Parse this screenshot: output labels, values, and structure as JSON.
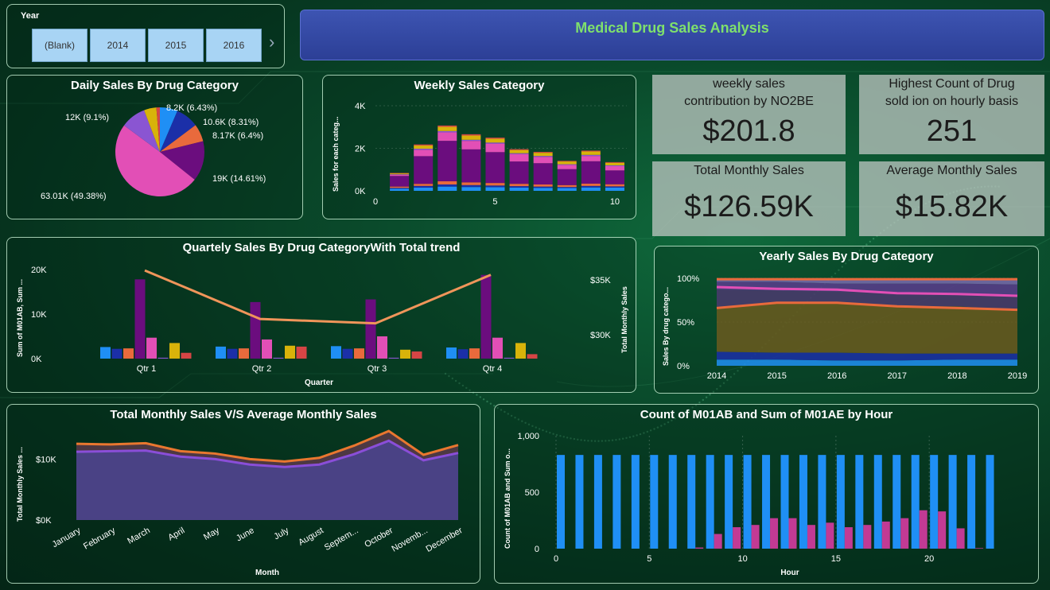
{
  "header": {
    "title": "Medical Drug Sales Analysis"
  },
  "slicer": {
    "label": "Year",
    "options": [
      "(Blank)",
      "2014",
      "2015",
      "2016"
    ],
    "more": "›"
  },
  "cards": [
    {
      "label1": "weekly sales",
      "label2": "contribution by NO2BE",
      "value": "$201.8"
    },
    {
      "label1": "Highest Count of Drug",
      "label2": "sold ion on hourly basis",
      "value": "251"
    },
    {
      "label1": "Total Monthly Sales",
      "label2": "",
      "value": "$126.59K"
    },
    {
      "label1": "Average Monthly Sales",
      "label2": "",
      "value": "$15.82K"
    }
  ],
  "colors": {
    "blue": "#1f8ff5",
    "navy": "#1b2fa8",
    "orange": "#e96a3c",
    "purple": "#6b0d7e",
    "pink": "#e24fb6",
    "lavender": "#8a55d2",
    "yellow": "#d8b30a",
    "red": "#d64545"
  },
  "chart_data": [
    {
      "id": "daily",
      "type": "pie",
      "title": "Daily Sales By Drug Category",
      "slices": [
        {
          "label": "8.2K (6.43%)",
          "value": 6.43,
          "color": "#1f8ff5"
        },
        {
          "label": "10.6K (8.31%)",
          "value": 8.31,
          "color": "#1b2fa8"
        },
        {
          "label": "8.17K (6.4%)",
          "value": 6.4,
          "color": "#e96a3c"
        },
        {
          "label": "19K (14.61%)",
          "value": 14.61,
          "color": "#6b0d7e"
        },
        {
          "label": "63.01K (49.38%)",
          "value": 49.38,
          "color": "#e24fb6"
        },
        {
          "label": "12K (9.1%)",
          "value": 9.1,
          "color": "#8a55d2"
        },
        {
          "label": "",
          "value": 4.5,
          "color": "#d8b30a"
        },
        {
          "label": "",
          "value": 1.27,
          "color": "#d64545"
        }
      ]
    },
    {
      "id": "weekly",
      "type": "bar",
      "stacked": true,
      "title": "Weekly Sales Category",
      "ylabel": "Sales for each categ...",
      "yticks": [
        "0K",
        "2K",
        "4K"
      ],
      "ylim": [
        0,
        4000
      ],
      "xticks": [
        0,
        5,
        10
      ],
      "x": [
        1,
        2,
        3,
        4,
        5,
        6,
        7,
        8,
        9,
        10
      ],
      "series": [
        {
          "values": [
            100,
            150,
            200,
            180,
            170,
            150,
            140,
            130,
            160,
            150
          ],
          "color": "#1f8ff5"
        },
        {
          "values": [
            40,
            80,
            100,
            90,
            80,
            70,
            60,
            50,
            70,
            60
          ],
          "color": "#1b2fa8"
        },
        {
          "values": [
            60,
            100,
            150,
            130,
            120,
            110,
            100,
            90,
            110,
            100
          ],
          "color": "#e96a3c"
        },
        {
          "values": [
            500,
            1300,
            1900,
            1550,
            1450,
            1050,
            1000,
            750,
            1050,
            650
          ],
          "color": "#6b0d7e"
        },
        {
          "values": [
            60,
            300,
            400,
            400,
            400,
            350,
            300,
            200,
            250,
            200
          ],
          "color": "#e24fb6"
        },
        {
          "values": [
            20,
            50,
            60,
            50,
            50,
            40,
            40,
            30,
            50,
            40
          ],
          "color": "#8a55d2"
        },
        {
          "values": [
            40,
            150,
            200,
            200,
            180,
            150,
            150,
            130,
            160,
            120
          ],
          "color": "#d8b30a"
        },
        {
          "values": [
            20,
            50,
            60,
            60,
            50,
            40,
            40,
            30,
            40,
            30
          ],
          "color": "#d64545"
        }
      ]
    },
    {
      "id": "quarterly",
      "type": "bar",
      "title": "Quartely Sales By Drug CategoryWith Total trend",
      "xlabel": "Quarter",
      "ylabel": "Sum of M01AB, Sum ...",
      "y2label": "Total Monthly Sales",
      "categories": [
        "Qtr 1",
        "Qtr 2",
        "Qtr 3",
        "Qtr 4"
      ],
      "yticks": [
        "0K",
        "10K",
        "20K"
      ],
      "ylim": [
        0,
        20000
      ],
      "y2ticks": [
        "$30K",
        "$35K"
      ],
      "y2lim": [
        26000,
        37000
      ],
      "series": [
        {
          "values": [
            2600,
            2700,
            2800,
            2500
          ],
          "color": "#1f8ff5"
        },
        {
          "values": [
            2200,
            2200,
            2200,
            2100
          ],
          "color": "#1b2fa8"
        },
        {
          "values": [
            2300,
            2300,
            2300,
            2300
          ],
          "color": "#e96a3c"
        },
        {
          "values": [
            17800,
            12700,
            13300,
            18800
          ],
          "color": "#6b0d7e"
        },
        {
          "values": [
            4700,
            4300,
            5000,
            4700
          ],
          "color": "#e24fb6"
        },
        {
          "values": [
            200,
            200,
            200,
            200
          ],
          "color": "#8a55d2"
        },
        {
          "values": [
            3500,
            2900,
            2000,
            3500
          ],
          "color": "#d8b30a"
        },
        {
          "values": [
            1300,
            2700,
            1600,
            1000
          ],
          "color": "#d64545"
        }
      ],
      "line": {
        "values": [
          36000,
          30500,
          30000,
          35500
        ],
        "color": "#f0955a"
      }
    },
    {
      "id": "yearly",
      "type": "area",
      "stacked": true,
      "title": "Yearly Sales By Drug Category",
      "ylabel": "Sales By drug catego...",
      "x": [
        2014,
        2015,
        2016,
        2017,
        2018,
        2019
      ],
      "yticks": [
        "0%",
        "50%",
        "100%"
      ],
      "ylim": [
        0,
        100
      ],
      "series": [
        {
          "values": [
            7,
            7,
            6,
            6,
            7,
            7
          ],
          "color": "#1f8ff5"
        },
        {
          "values": [
            9,
            8,
            9,
            8,
            7,
            7
          ],
          "color": "#1b2fa8"
        },
        {
          "values": [
            50,
            57,
            57,
            54,
            54,
            50
          ],
          "color": "#6b5a1e"
        },
        {
          "values": [
            21,
            14,
            13,
            15,
            14,
            16
          ],
          "color": "#4b3a6e"
        },
        {
          "values": [
            9,
            10,
            9,
            11,
            12,
            13
          ],
          "color": "#5b3d8e"
        },
        {
          "values": [
            3,
            3,
            5,
            5,
            5,
            6
          ],
          "color": "#7a6bb0"
        },
        {
          "values": [
            1,
            1,
            1,
            1,
            1,
            1
          ],
          "color": "#d64545"
        }
      ],
      "lines": [
        {
          "values": [
            66,
            72,
            72,
            68,
            66,
            64
          ],
          "color": "#e96a3c"
        },
        {
          "values": [
            90,
            88,
            87,
            83,
            82,
            80
          ],
          "color": "#e24fb6"
        },
        {
          "values": [
            99,
            99,
            99,
            99,
            99,
            99
          ],
          "color": "#e96a3c"
        }
      ]
    },
    {
      "id": "monthly",
      "type": "area",
      "title": "Total Monthly Sales V/S Average Monthly Sales",
      "xlabel": "Month",
      "ylabel": "Total Monthly Sales ...",
      "categories": [
        "January",
        "February",
        "March",
        "April",
        "May",
        "June",
        "July",
        "August",
        "Septem...",
        "October",
        "Novemb...",
        "December"
      ],
      "yticks": [
        "$0K",
        "$10K"
      ],
      "ylim": [
        0,
        15000
      ],
      "series": [
        {
          "values": [
            11200,
            11300,
            11400,
            10400,
            10000,
            9100,
            8700,
            9100,
            10800,
            13000,
            9800,
            11000
          ],
          "color": "#8a4ed8"
        },
        {
          "values": [
            12500,
            12400,
            12600,
            11300,
            10900,
            10000,
            9600,
            10200,
            12200,
            14600,
            10700,
            12300
          ],
          "color": "#e9772f"
        }
      ]
    },
    {
      "id": "hourly",
      "type": "bar",
      "title": "Count of M01AB and Sum of M01AE by Hour",
      "xlabel": "Hour",
      "ylabel": "Count of M01AB and Sum o...",
      "yticks": [
        "0",
        "500",
        "1,000"
      ],
      "ylim": [
        0,
        1000
      ],
      "xticks": [
        0,
        5,
        10,
        15,
        20
      ],
      "x": [
        0,
        1,
        2,
        3,
        4,
        5,
        6,
        7,
        8,
        9,
        10,
        11,
        12,
        13,
        14,
        15,
        16,
        17,
        18,
        19,
        20,
        21,
        22,
        23
      ],
      "series": [
        {
          "name": "",
          "values": [
            830,
            830,
            830,
            830,
            830,
            830,
            830,
            830,
            830,
            830,
            830,
            830,
            830,
            830,
            830,
            830,
            830,
            830,
            830,
            830,
            830,
            830,
            830,
            830
          ],
          "color": "#1f8ff5"
        },
        {
          "name": "",
          "values": [
            0,
            0,
            0,
            0,
            0,
            0,
            0,
            10,
            130,
            190,
            210,
            270,
            270,
            210,
            230,
            190,
            210,
            240,
            270,
            340,
            330,
            180,
            5,
            0
          ],
          "color": "#c23a94"
        }
      ]
    }
  ]
}
